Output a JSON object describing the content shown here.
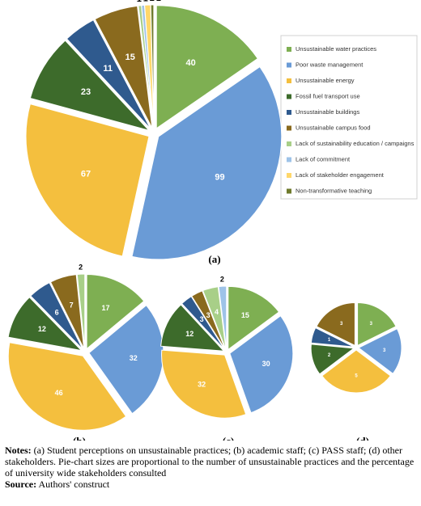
{
  "chart_data": [
    {
      "type": "pie",
      "title": "(a)",
      "legend": "right",
      "categories": [
        "Unsustainable water practices",
        "Poor waste management",
        "Unsustainable energy",
        "Fossil fuel transport use",
        "Unsustainable buildings",
        "Unsustainable campus food",
        "Lack of sustainability education / campaigns",
        "Lack of commitment",
        "Lack of stakeholder engagement",
        "Non-transformative teaching"
      ],
      "colors": [
        "#7eaf52",
        "#6a9bd6",
        "#f4bf3e",
        "#3d6b2b",
        "#2f5a8e",
        "#8a6a1e",
        "#a8cf88",
        "#9ec3e8",
        "#ffd76a",
        "#6f7a2c"
      ],
      "values": [
        40,
        99,
        67,
        23,
        11,
        15,
        1,
        1,
        2,
        1
      ]
    },
    {
      "type": "pie",
      "title": "(b)",
      "values": [
        17,
        32,
        46,
        12,
        6,
        7,
        2,
        null,
        null,
        null
      ]
    },
    {
      "type": "pie",
      "title": "(c)",
      "values": [
        15,
        30,
        32,
        12,
        3,
        3,
        4,
        2,
        null,
        null
      ]
    },
    {
      "type": "pie",
      "title": "(d)",
      "values": [
        3,
        3,
        5,
        2,
        1,
        3,
        null,
        null,
        null,
        null
      ]
    }
  ],
  "notes": {
    "label": "Notes:",
    "text": "(a) Student perceptions on unsustainable practices; (b) academic staff; (c) PASS staff; (d) other stakeholders. Pie-chart sizes are proportional to the number of unsustainable practices and the percentage of university wide stakeholders consulted"
  },
  "source": {
    "label": "Source:",
    "text": "Authors' construct"
  }
}
